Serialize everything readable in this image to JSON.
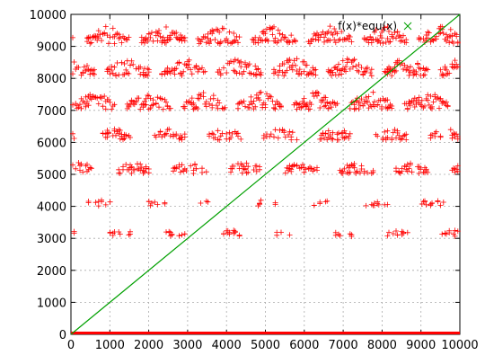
{
  "chart_data": {
    "type": "scatter",
    "title": "",
    "xlabel": "",
    "ylabel": "",
    "xlim": [
      0,
      10000
    ],
    "ylim": [
      0,
      10000
    ],
    "x_ticks": [
      "0",
      "1000",
      "2000",
      "3000",
      "4000",
      "5000",
      "6000",
      "7000",
      "8000",
      "9000",
      "10000"
    ],
    "y_ticks": [
      "0",
      "1000",
      "2000",
      "3000",
      "4000",
      "5000",
      "6000",
      "7000",
      "8000",
      "9000",
      "10000"
    ],
    "grid": true,
    "legend": {
      "placement": "top-right",
      "entries": [
        "f(x)*equ(x)"
      ]
    },
    "colors": {
      "points": "#ff0000",
      "line": "#00a000",
      "grid": "#aaaaaa"
    },
    "series": [
      {
        "style": "points",
        "marker": "+",
        "description_bands": [
          {
            "y": 0,
            "x_range": [
              0,
              10000
            ],
            "density": "continuous"
          },
          {
            "y": 3100,
            "x_range": [
              0,
              10000
            ],
            "density": "sparse"
          },
          {
            "y": 4050,
            "x_range": [
              0,
              10000
            ],
            "density": "sparse"
          },
          {
            "y": 5100,
            "x_range": [
              0,
              10000
            ],
            "density": "medium"
          },
          {
            "y": 6150,
            "x_range": [
              0,
              10000
            ],
            "density": "medium"
          },
          {
            "y": 7150,
            "x_range": [
              0,
              10000
            ],
            "density": "dense"
          },
          {
            "y": 8200,
            "x_range": [
              0,
              10000
            ],
            "density": "dense"
          },
          {
            "y": 9200,
            "x_range": [
              0,
              10000
            ],
            "density": "dense"
          }
        ]
      },
      {
        "style": "line",
        "x": [
          0,
          10000
        ],
        "y": [
          0,
          10000
        ]
      }
    ]
  }
}
